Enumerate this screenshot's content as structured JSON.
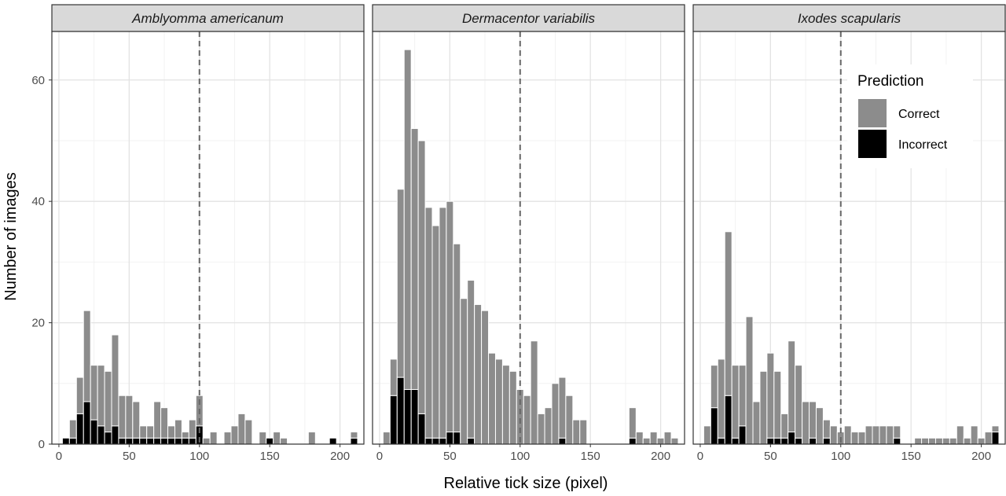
{
  "chart_data": {
    "type": "bar",
    "subtype": "histogram-faceted",
    "xlabel": "Relative tick size (pixel)",
    "ylabel": "Number of images",
    "xlim": [
      -5,
      217
    ],
    "ylim": [
      0,
      68
    ],
    "xticks": [
      0,
      50,
      100,
      150,
      200
    ],
    "yticks": [
      0,
      20,
      40,
      60
    ],
    "grid": true,
    "reference_line": {
      "x": 100,
      "style": "dashed"
    },
    "bin_width": 5,
    "stacked": true,
    "legend": {
      "title": "Prediction",
      "position": "top-right",
      "entries": [
        {
          "name": "Correct",
          "color": "#8c8c8c"
        },
        {
          "name": "Incorrect",
          "color": "#000000"
        }
      ]
    },
    "x": [
      5,
      10,
      15,
      20,
      25,
      30,
      35,
      40,
      45,
      50,
      55,
      60,
      65,
      70,
      75,
      80,
      85,
      90,
      95,
      100,
      105,
      110,
      115,
      120,
      125,
      130,
      135,
      140,
      145,
      150,
      155,
      160,
      165,
      170,
      175,
      180,
      185,
      190,
      195,
      200,
      205,
      210
    ],
    "panels": [
      {
        "title": "Amblyomma americanum",
        "series": [
          {
            "name": "Correct",
            "values": [
              0,
              3,
              6,
              15,
              9,
              10,
              10,
              15,
              7,
              7,
              6,
              2,
              2,
              6,
              5,
              2,
              3,
              1,
              3,
              5,
              1,
              2,
              0,
              2,
              3,
              5,
              4,
              0,
              2,
              0,
              2,
              1,
              0,
              0,
              0,
              2,
              0,
              0,
              0,
              0,
              0,
              1
            ]
          },
          {
            "name": "Incorrect",
            "values": [
              1,
              1,
              5,
              7,
              4,
              3,
              2,
              3,
              1,
              1,
              1,
              1,
              1,
              1,
              1,
              1,
              1,
              1,
              1,
              3,
              0,
              0,
              0,
              0,
              0,
              0,
              0,
              0,
              0,
              1,
              0,
              0,
              0,
              0,
              0,
              0,
              0,
              0,
              1,
              0,
              0,
              1
            ]
          }
        ]
      },
      {
        "title": "Dermacentor variabilis",
        "series": [
          {
            "name": "Correct",
            "values": [
              2,
              6,
              31,
              56,
              43,
              45,
              38,
              35,
              38,
              38,
              31,
              24,
              26,
              23,
              22,
              15,
              14,
              13,
              12,
              9,
              8,
              17,
              5,
              6,
              10,
              10,
              8,
              4,
              4,
              0,
              0,
              0,
              0,
              0,
              0,
              5,
              2,
              1,
              2,
              1,
              2,
              1
            ]
          },
          {
            "name": "Incorrect",
            "values": [
              0,
              8,
              11,
              9,
              9,
              5,
              1,
              1,
              1,
              2,
              2,
              0,
              1,
              0,
              0,
              0,
              0,
              0,
              0,
              0,
              0,
              0,
              0,
              0,
              0,
              1,
              0,
              0,
              0,
              0,
              0,
              0,
              0,
              0,
              0,
              1,
              0,
              0,
              0,
              0,
              0,
              0
            ]
          }
        ]
      },
      {
        "title": "Ixodes scapularis",
        "series": [
          {
            "name": "Correct",
            "values": [
              3,
              7,
              13,
              27,
              12,
              10,
              21,
              7,
              12,
              14,
              11,
              4,
              15,
              12,
              7,
              6,
              6,
              3,
              3,
              2,
              3,
              2,
              2,
              3,
              3,
              3,
              3,
              2,
              0,
              0,
              1,
              1,
              1,
              1,
              1,
              1,
              3,
              1,
              3,
              1,
              2,
              1
            ]
          },
          {
            "name": "Incorrect",
            "values": [
              0,
              6,
              1,
              8,
              1,
              3,
              0,
              0,
              0,
              1,
              1,
              1,
              2,
              1,
              0,
              1,
              0,
              1,
              0,
              0,
              0,
              0,
              0,
              0,
              0,
              0,
              0,
              1,
              0,
              0,
              0,
              0,
              0,
              0,
              0,
              0,
              0,
              0,
              0,
              0,
              0,
              2
            ]
          }
        ]
      }
    ]
  }
}
